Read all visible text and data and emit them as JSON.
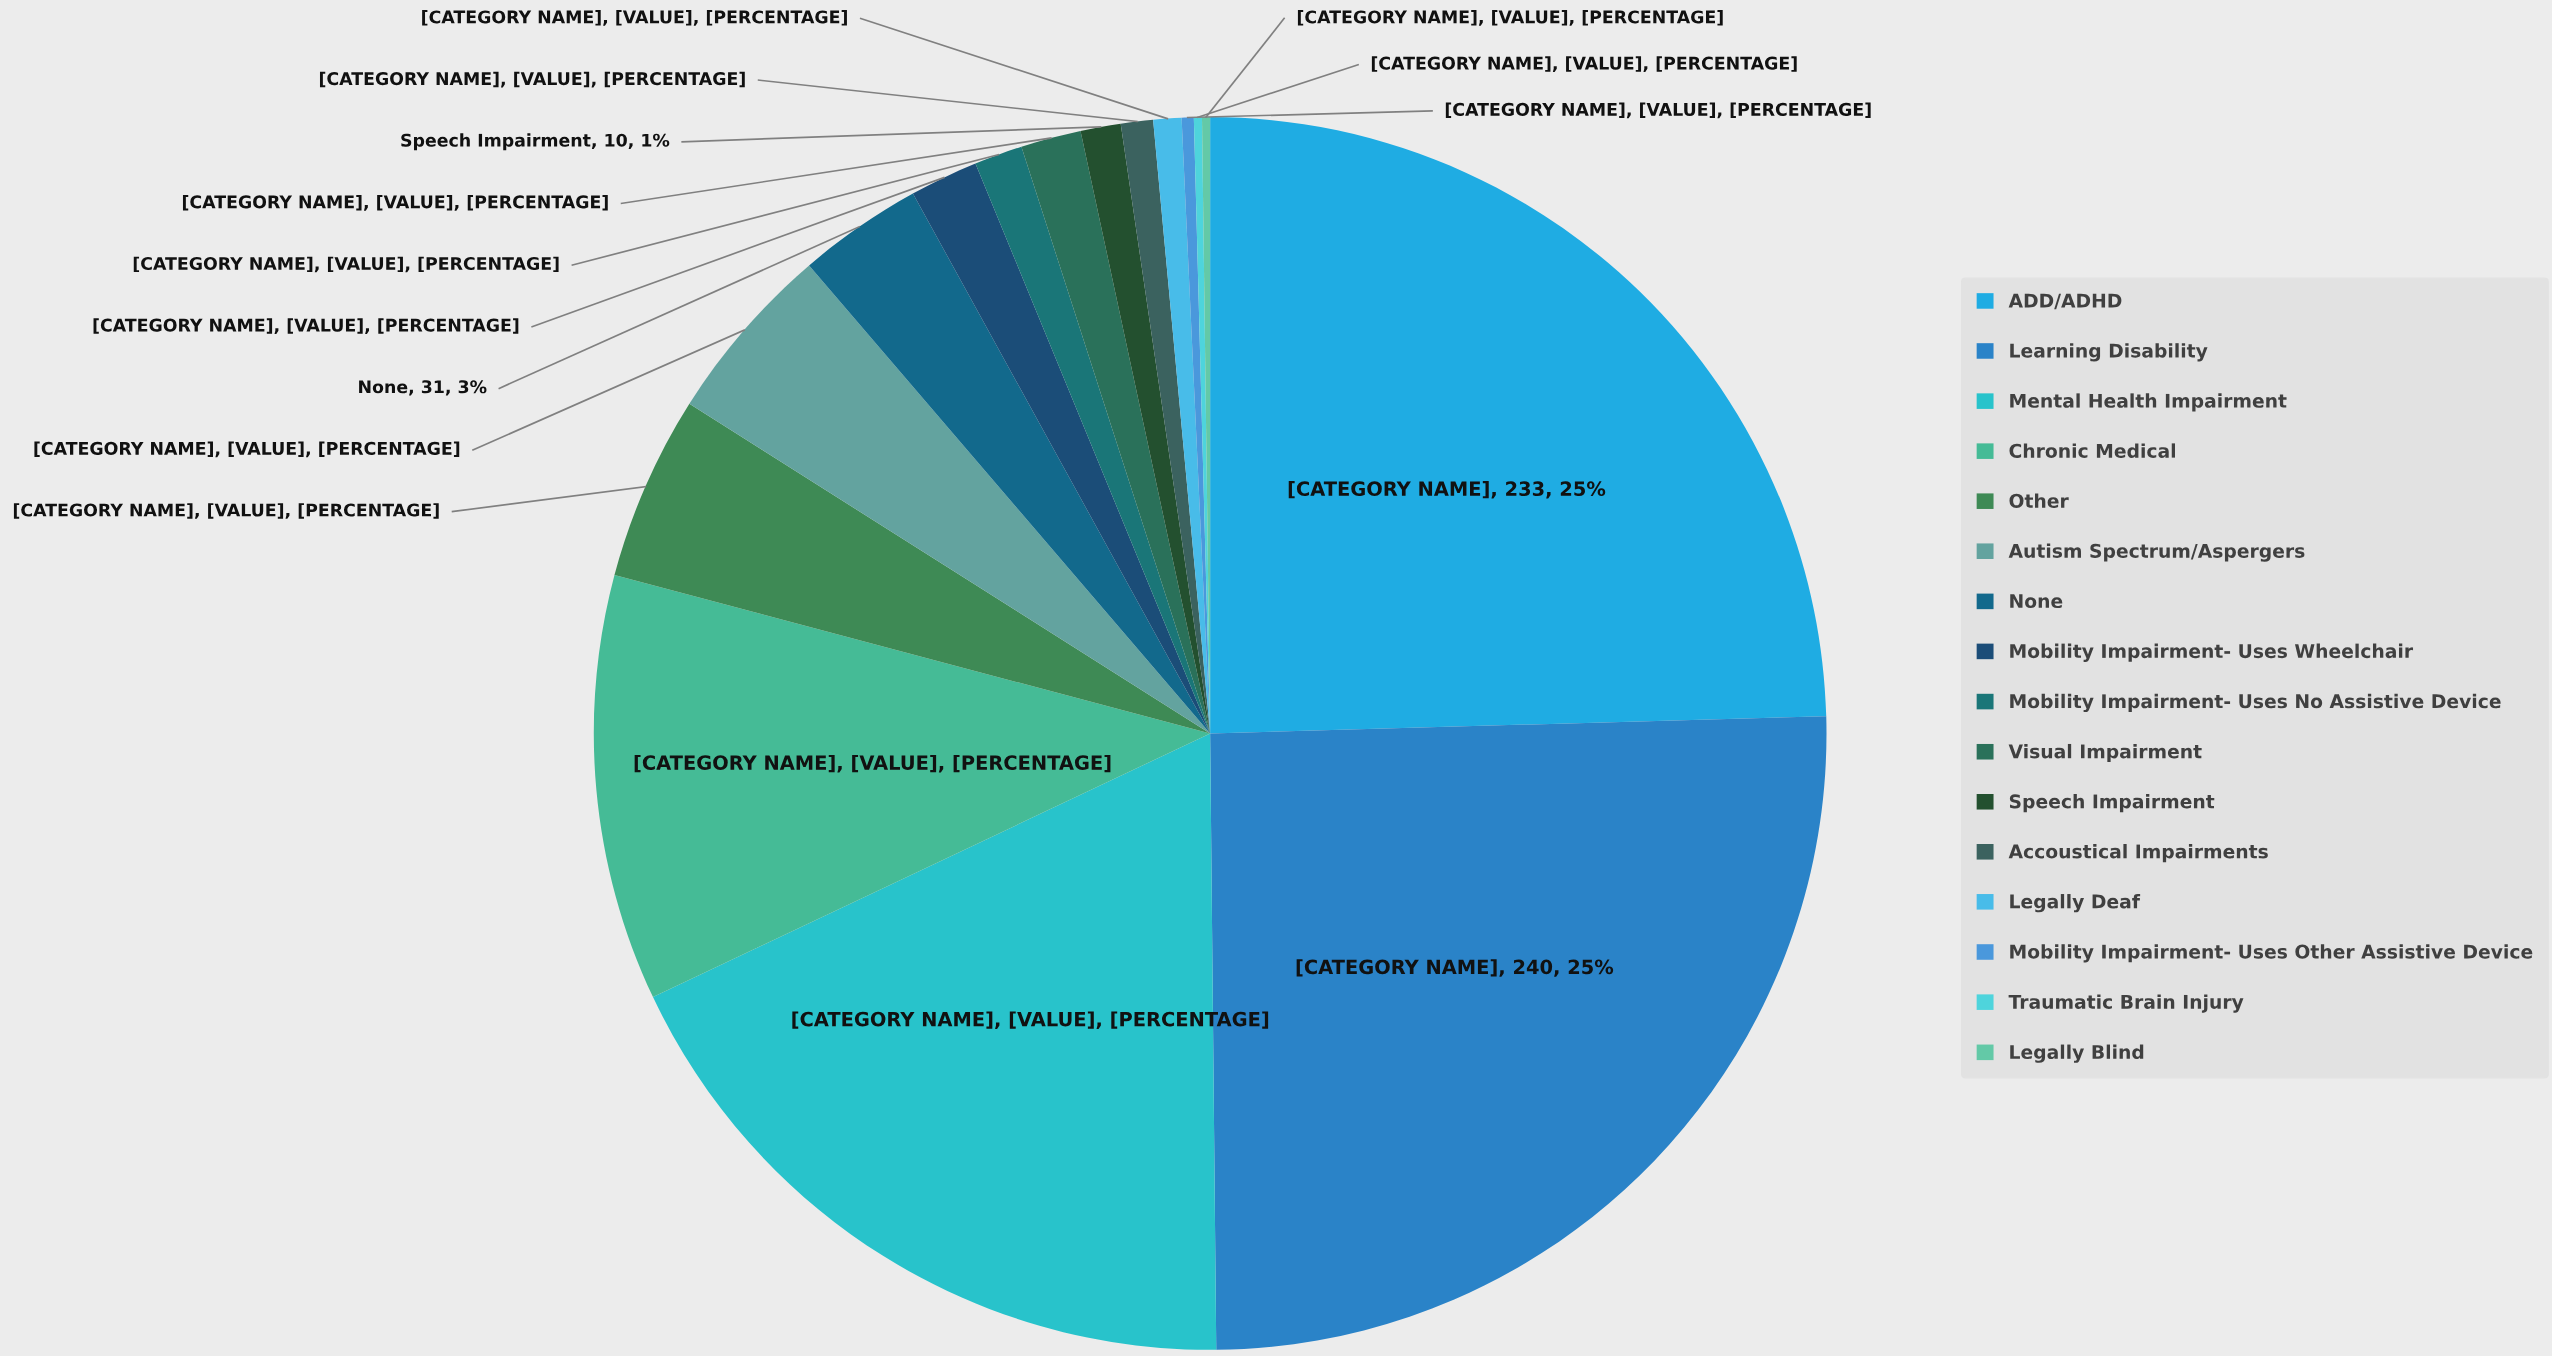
{
  "chart_data": {
    "type": "pie",
    "categories": [
      "ADD/ADHD",
      "Learning Disability",
      "Mental Health Impairment",
      "Chronic Medical",
      "Other",
      "Autism Spectrum/Aspergers",
      "None",
      "Mobility Impairment- Uses Wheelchair",
      "Mobility Impairment- Uses No Assistive Device",
      "Visual Impairment",
      "Speech Impairment",
      "Accoustical Impairments",
      "Legally Deaf",
      "Mobility Impairment- Uses Other Assistive Device",
      "Traumatic Brain Injury",
      "Legally Blind"
    ],
    "values": [
      233,
      240,
      172,
      106,
      46,
      45,
      31,
      17,
      12,
      15,
      10,
      8,
      7,
      3,
      2,
      2
    ],
    "colors": [
      "#1face3",
      "#2a83c8",
      "#28c3cb",
      "#45bb96",
      "#3e8a55",
      "#63a39f",
      "#12698c",
      "#1b4d78",
      "#1a7678",
      "#2a715a",
      "#23502f",
      "#3b625f",
      "#48bce9",
      "#4a98dc",
      "#4ed4dc",
      "#63c9a7"
    ],
    "value_labels": [
      "[CATEGORY NAME], 233, 25%",
      "[CATEGORY NAME], 240, 25%",
      "[CATEGORY NAME], [VALUE], [PERCENTAGE]",
      "[CATEGORY NAME], [VALUE], [PERCENTAGE]",
      "[CATEGORY NAME], [VALUE], [PERCENTAGE]",
      "[CATEGORY NAME], [VALUE], [PERCENTAGE]",
      "None, 31, 3%",
      "[CATEGORY NAME], [VALUE], [PERCENTAGE]",
      "[CATEGORY NAME], [VALUE], [PERCENTAGE]",
      "[CATEGORY NAME], [VALUE], [PERCENTAGE]",
      "Speech Impairment, 10, 1%",
      "[CATEGORY NAME], [VALUE], [PERCENTAGE]",
      "[CATEGORY NAME], [VALUE], [PERCENTAGE]",
      "[CATEGORY NAME], [VALUE], [PERCENTAGE]",
      "[CATEGORY NAME], [VALUE], [PERCENTAGE]",
      "[CATEGORY NAME], [VALUE], [PERCENTAGE]"
    ],
    "legend": "right"
  }
}
